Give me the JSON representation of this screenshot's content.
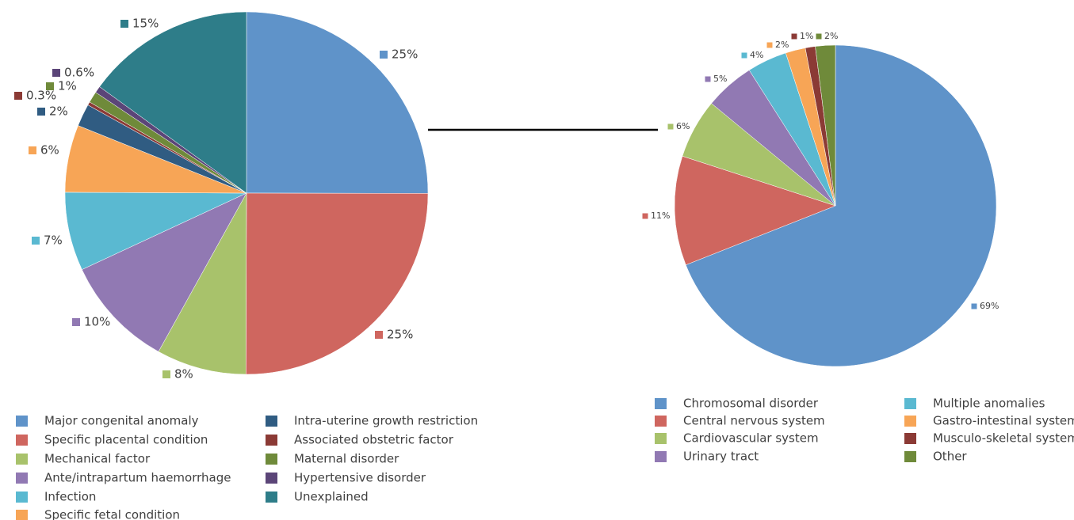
{
  "chart_data": [
    {
      "type": "pie",
      "categories": [
        "Major congenital anomaly",
        "Specific placental condition",
        "Mechanical factor",
        "Ante/intrapartum haemorrhage",
        "Infection",
        "Specific fetal condition",
        "Intra-uterine growth restriction",
        "Associated obstetric factor",
        "Maternal disorder",
        "Hypertensive disorder",
        "Unexplained"
      ],
      "values": [
        25,
        25,
        8,
        10,
        7,
        6,
        2,
        0.3,
        1,
        0.6,
        15
      ],
      "value_labels": [
        "25%",
        "25%",
        "8%",
        "10%",
        "7%",
        "6%",
        "2%",
        "0.3%",
        "1%",
        "0.6%",
        "15%"
      ],
      "colors": [
        "#5f93c9",
        "#cf665f",
        "#a8c26b",
        "#9179b3",
        "#5ab9d1",
        "#f7a556",
        "#305c82",
        "#8b3a35",
        "#6f8a3a",
        "#5b4578",
        "#2e7d89"
      ]
    },
    {
      "type": "pie",
      "categories": [
        "Chromosomal disorder",
        "Central nervous system",
        "Cardiovascular system",
        "Urinary tract",
        "Multiple anomalies",
        "Gastro-intestinal system",
        "Musculo-skeletal system",
        "Other"
      ],
      "values": [
        69,
        11,
        6,
        5,
        4,
        2,
        1,
        2
      ],
      "value_labels": [
        "69%",
        "11%",
        "6%",
        "5%",
        "4%",
        "2%",
        "1%",
        "2%"
      ],
      "colors": [
        "#5f93c9",
        "#cf665f",
        "#a8c26b",
        "#9179b3",
        "#5ab9d1",
        "#f7a556",
        "#8b3a35",
        "#6f8a3a"
      ]
    }
  ]
}
